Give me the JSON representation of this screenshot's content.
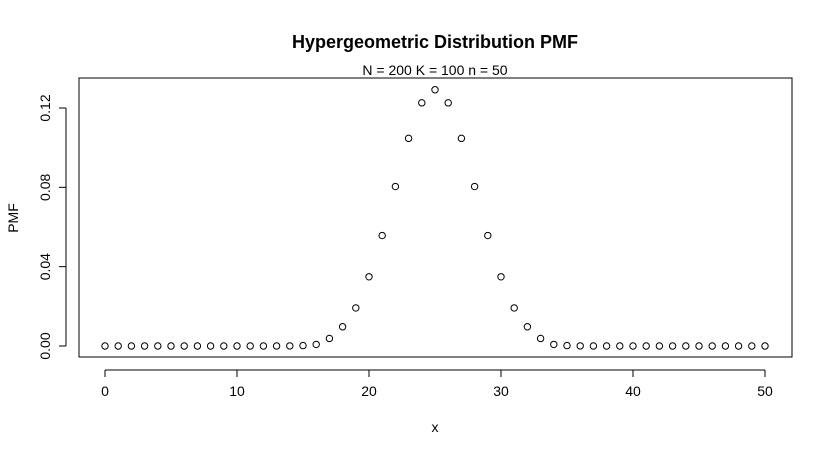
{
  "chart_data": {
    "type": "scatter",
    "title": "Hypergeometric Distribution PMF",
    "subtitle": "N = 200  K = 100  n = 50",
    "xlabel": "x",
    "ylabel": "PMF",
    "xlim": [
      0,
      50
    ],
    "ylim": [
      0,
      0.129
    ],
    "xticks": [
      0,
      10,
      20,
      30,
      40,
      50
    ],
    "yticks": [
      0.0,
      0.04,
      0.08,
      0.12
    ],
    "xtick_labels": [
      "0",
      "10",
      "20",
      "30",
      "40",
      "50"
    ],
    "ytick_labels": [
      "0.00",
      "0.04",
      "0.08",
      "0.12"
    ],
    "grid": false,
    "series": [
      {
        "x": [
          0,
          1,
          2,
          3,
          4,
          5,
          6,
          7,
          8,
          9,
          10,
          11,
          12,
          13,
          14,
          15,
          16,
          17,
          18,
          19,
          20,
          21,
          22,
          23,
          24,
          25,
          26,
          27,
          28,
          29,
          30,
          31,
          32,
          33,
          34,
          35,
          36,
          37,
          38,
          39,
          40,
          41,
          42,
          43,
          44,
          45,
          46,
          47,
          48,
          49,
          50
        ],
        "values": [
          0,
          0,
          0,
          0,
          0,
          0,
          0,
          0,
          0,
          0,
          0,
          0,
          0,
          1e-05,
          5e-05,
          0.0002,
          0.0008,
          0.0038,
          0.0097,
          0.0192,
          0.0349,
          0.0557,
          0.0804,
          0.1047,
          0.1226,
          0.1292,
          0.1226,
          0.1047,
          0.0804,
          0.0557,
          0.0349,
          0.0192,
          0.0097,
          0.0038,
          0.0008,
          0.0002,
          5e-05,
          1e-05,
          0,
          0,
          0,
          0,
          0,
          0,
          0,
          0,
          0,
          0,
          0,
          0,
          0
        ]
      }
    ]
  }
}
